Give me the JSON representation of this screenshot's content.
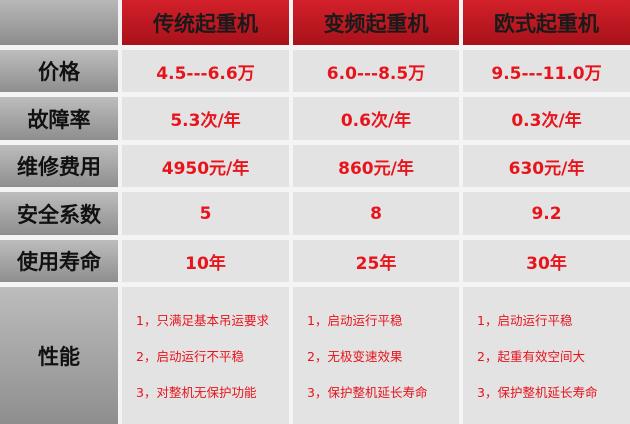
{
  "table": {
    "header": [
      "传统起重机",
      "变频起重机",
      "欧式起重机"
    ],
    "rows": [
      {
        "label": "价格",
        "cells": [
          "4.5---6.6万",
          "6.0---8.5万",
          "9.5---11.0万"
        ]
      },
      {
        "label": "故障率",
        "cells": [
          "5.3次/年",
          "0.6次/年",
          "0.3次/年"
        ]
      },
      {
        "label": "维修费用",
        "cells": [
          "4950元/年",
          "860元/年",
          "630元/年"
        ]
      },
      {
        "label": "安全系数",
        "cells": [
          "5",
          "8",
          "9.2"
        ]
      },
      {
        "label": "使用寿命",
        "cells": [
          "10年",
          "25年",
          "30年"
        ]
      },
      {
        "label": "性能",
        "cells": [
          [
            "1，只满足基本吊运要求",
            "2，启动运行不平稳",
            "3，对整机无保护功能"
          ],
          [
            "1，启动运行平稳",
            "2，无极变速效果",
            "3，保护整机延长寿命"
          ],
          [
            "1，启动运行平稳",
            "2，起重有效空间大",
            "3，保护整机延长寿命"
          ]
        ]
      }
    ]
  }
}
